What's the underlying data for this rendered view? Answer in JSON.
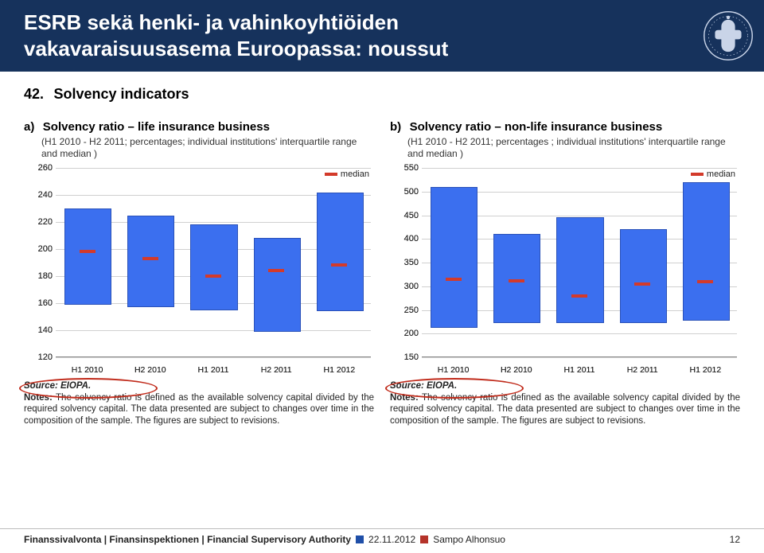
{
  "header": {
    "title_line1": "ESRB sekä henki- ja vahinkoyhtiöiden",
    "title_line2": "vakavaraisuusasema Euroopassa: noussut",
    "bg_color": "#16325c",
    "title_color": "#ffffff"
  },
  "section": {
    "number": "42.",
    "title": "Solvency indicators"
  },
  "legend_text": "median",
  "colors": {
    "bar": "#3b6fef",
    "bar_border": "#2a51b8",
    "median": "#d33a2a",
    "grid": "#d0d0d0",
    "ellipse": "#c02a1a",
    "sq_blue": "#1f4fa8",
    "sq_red": "#b5332a"
  },
  "chart_a": {
    "letter": "a)",
    "title": "Solvency ratio – life insurance business",
    "sub": "(H1 2010 - H2 2011; percentages; individual institutions' interquartile range and median )",
    "ylim": [
      120,
      260
    ],
    "ytick_step": 20,
    "categories": [
      "H1 2010",
      "H2 2010",
      "H1 2011",
      "H2 2011",
      "H1 2012"
    ],
    "iqr": [
      [
        160,
        230
      ],
      [
        158,
        225
      ],
      [
        156,
        218
      ],
      [
        140,
        208
      ],
      [
        155,
        242
      ]
    ],
    "median": [
      198,
      193,
      180,
      184,
      188
    ],
    "source": "Source: EIOPA.",
    "notes": "The solvency ratio is defined as the available solvency capital divided by the required solvency capital. The data presented are subject to changes over time in the composition of the sample. The figures are subject to revisions."
  },
  "chart_b": {
    "letter": "b)",
    "title": "Solvency ratio – non-life insurance business",
    "sub": "(H1 2010 - H2 2011; percentages ; individual institutions' interquartile range and median )",
    "ylim": [
      150,
      550
    ],
    "ytick_step": 50,
    "categories": [
      "H1 2010",
      "H2 2010",
      "H1 2011",
      "H2 2011",
      "H1 2012"
    ],
    "iqr": [
      [
        215,
        510
      ],
      [
        225,
        410
      ],
      [
        225,
        445
      ],
      [
        225,
        420
      ],
      [
        230,
        520
      ]
    ],
    "median": [
      315,
      312,
      280,
      305,
      310
    ],
    "source": "Source: EIOPA.",
    "notes": "The solvency ratio is defined as the available solvency capital divided by the required solvency capital. The data presented are subject to changes over time in the composition of the sample. The figures are subject to revisions."
  },
  "footer": {
    "org": "Finanssivalvonta | Finansinspektionen | Financial Supervisory Authority",
    "date": "22.11.2012",
    "author": "Sampo Alhonsuo",
    "page": "12"
  }
}
